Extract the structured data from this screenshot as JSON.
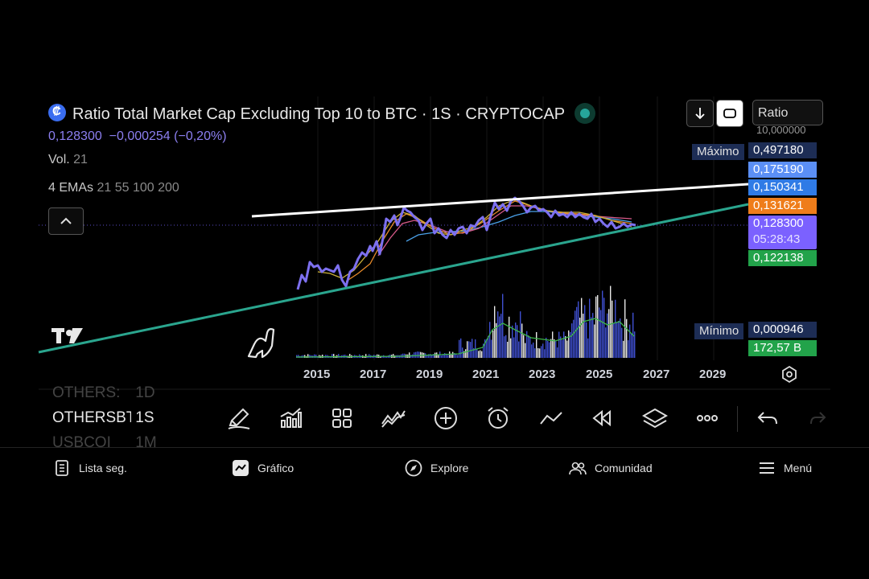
{
  "header": {
    "title": "Ratio Total Market Cap Excluding Top 10 to BTC · 1S · CRYPTOCAP",
    "price": "0,128300",
    "change": "−0,000254 (−0,20%)"
  },
  "indicators": {
    "vol_label": "Vol.",
    "vol_value": "21",
    "emas_label": "4 EMAs",
    "emas_value": "21 55 100 200"
  },
  "toolbar_top": {
    "scale_select": "Ratio",
    "scale_top_value": "10,000000"
  },
  "price_axis": {
    "max_label": "Máximo",
    "max_value": "0,497180",
    "ema_values": [
      "0,175190",
      "0,150341",
      "0,131621"
    ],
    "current_value": "0,128300",
    "countdown": "05:28:43",
    "low_value": "0,122138",
    "min_label": "Mínimo",
    "min_value": "0,000946",
    "volume_value": "172,57 B",
    "colors": {
      "ema1": "#5b8ff5",
      "ema2": "#2f7be6",
      "ema3": "#ef7d1a",
      "current": "#7b61ff",
      "low": "#22a34a",
      "volume": "#22a34a"
    }
  },
  "time_axis": {
    "ticks": [
      "2015",
      "2017",
      "2019",
      "2021",
      "2023",
      "2025",
      "2027",
      "2029"
    ]
  },
  "symbols": [
    {
      "name": "OTHERS:",
      "interval": "1D"
    },
    {
      "name": "OTHERSBTC",
      "interval": "1S"
    },
    {
      "name": "USBCOI",
      "interval": "1M"
    }
  ],
  "drawing_tools": [
    "pen-icon",
    "bar-chart-icon",
    "grid-icon",
    "pattern-icon",
    "add-icon",
    "alarm-icon",
    "trendline-icon",
    "rewind-icon",
    "layers-icon",
    "more-icon",
    "undo-icon",
    "redo-icon"
  ],
  "bottom_nav": [
    {
      "label": "Lista seg.",
      "icon": "watchlist-icon"
    },
    {
      "label": "Gráfico",
      "icon": "chart-icon"
    },
    {
      "label": "Explore",
      "icon": "compass-icon"
    },
    {
      "label": "Comunidad",
      "icon": "community-icon"
    },
    {
      "label": "Menú",
      "icon": "menu-icon"
    }
  ],
  "chart_data": {
    "type": "line",
    "x": [
      "2014-06",
      "2015-01",
      "2016-01",
      "2016-06",
      "2017-01",
      "2017-06",
      "2018-01",
      "2018-06",
      "2019-01",
      "2019-06",
      "2020-01",
      "2020-06",
      "2021-01",
      "2021-06",
      "2022-01",
      "2022-06",
      "2023-01",
      "2023-06",
      "2024-01",
      "2024-06",
      "2025-01",
      "2025-06",
      "2026-01"
    ],
    "series": [
      {
        "values": [
          0.11,
          0.14,
          0.13,
          0.15,
          0.13,
          0.17,
          0.2,
          0.18,
          0.17,
          0.16,
          0.16,
          0.17,
          0.16,
          0.19,
          0.2,
          0.18,
          0.17,
          0.16,
          0.16,
          0.15,
          0.15,
          0.13,
          0.128
        ]
      }
    ],
    "price_scale": "log",
    "current_price": 0.1283
  }
}
